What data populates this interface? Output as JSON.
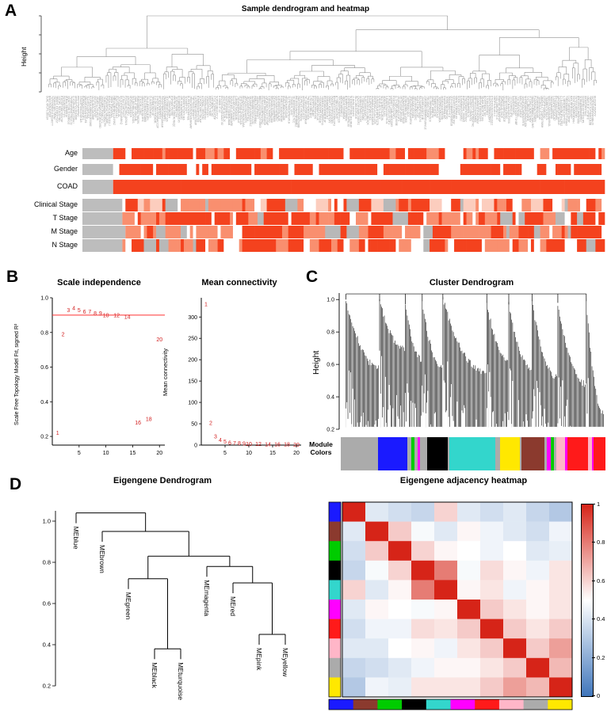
{
  "panel_labels": {
    "A": "A",
    "B": "B",
    "C": "C",
    "D": "D"
  },
  "module_colors": {
    "grey": "#ABABAB",
    "blue": "#1A1AFF",
    "green": "#00CC00",
    "black": "#000000",
    "turquoise": "#33D6CC",
    "magenta": "#FF00FF",
    "red": "#FF1A1A",
    "pink": "#FFB6C8",
    "yellow": "#FFE800",
    "brown": "#8B3A2E"
  },
  "heatmap_palette": {
    "strong_red": "#F4421E",
    "medium_red": "#F98F6F",
    "light_red": "#FCCDBE",
    "white": "#FFFFFF",
    "grey": "#B8B8B8",
    "grey_lead": "#BDBDBD"
  },
  "diverging_scale": {
    "low": "#4076BB",
    "mid": "#FFFFFF",
    "high": "#D62418"
  },
  "chart_data": [
    {
      "type": "dendrogram",
      "panel": "A",
      "title": "Sample dendrogram and heatmap",
      "ylabel": "Height",
      "traits": [
        "Age",
        "Gender",
        "COAD",
        "Clinical Stage",
        "T Stage",
        "M Stage",
        "N Stage"
      ]
    },
    {
      "type": "scatter",
      "panel": "B",
      "title": "Scale independence",
      "ylabel": "Scale Free Topology Model Fit, signed R²",
      "x": [
        1,
        2,
        3,
        4,
        5,
        6,
        7,
        8,
        9,
        10,
        12,
        14,
        16,
        18,
        20
      ],
      "y": [
        0.22,
        0.79,
        0.93,
        0.94,
        0.93,
        0.92,
        0.92,
        0.91,
        0.91,
        0.9,
        0.9,
        0.89,
        0.28,
        0.3,
        0.76
      ],
      "threshold_line": 0.9,
      "xticks": [
        "5",
        "10",
        "15",
        "20"
      ],
      "yticks": [
        "0.2",
        "0.4",
        "0.6",
        "0.8",
        "1.0"
      ],
      "ylim": [
        0.15,
        1.0
      ],
      "xlim": [
        0,
        21
      ]
    },
    {
      "type": "scatter",
      "panel": "B",
      "title": "Mean connectivity",
      "ylabel": "Mean connectivity",
      "x": [
        1,
        2,
        3,
        4,
        5,
        6,
        7,
        8,
        9,
        10,
        12,
        14,
        16,
        18,
        20
      ],
      "y": [
        330,
        52,
        20,
        12,
        8,
        6,
        5,
        4.2,
        3.6,
        3.2,
        2.6,
        2.1,
        1.7,
        1.4,
        1.2
      ],
      "xticks": [
        "5",
        "10",
        "15",
        "20"
      ],
      "yticks": [
        "0",
        "50",
        "100",
        "150",
        "200",
        "250",
        "300"
      ],
      "ylim": [
        0,
        345
      ],
      "xlim": [
        0,
        21
      ]
    },
    {
      "type": "dendrogram",
      "panel": "C",
      "title": "Cluster Dendrogram",
      "ylabel": "Height",
      "yticks": [
        "0.2",
        "0.4",
        "0.6",
        "0.8",
        "1.0"
      ],
      "bar_label_lines": [
        "Module",
        "Colors"
      ],
      "module_segments": [
        [
          "grey",
          13
        ],
        [
          "blue",
          10
        ],
        [
          "grey",
          1.5
        ],
        [
          "green",
          1
        ],
        [
          "grey",
          1
        ],
        [
          "magenta",
          0.8
        ],
        [
          "grey",
          2.7
        ],
        [
          "black",
          7
        ],
        [
          "grey",
          0.5
        ],
        [
          "turquoise",
          16
        ],
        [
          "grey",
          1.5
        ],
        [
          "yellow",
          7
        ],
        [
          "grey",
          0.5
        ],
        [
          "brown",
          8
        ],
        [
          "grey",
          0.7
        ],
        [
          "magenta",
          1.5
        ],
        [
          "green",
          1
        ],
        [
          "grey",
          0.8
        ],
        [
          "pink",
          3
        ],
        [
          "magenta",
          1
        ],
        [
          "red",
          7
        ],
        [
          "pink",
          1.5
        ],
        [
          "magenta",
          0.5
        ],
        [
          "red",
          4
        ]
      ]
    },
    {
      "type": "dendrogram",
      "panel": "D",
      "title": "Eigengene Dendrogram",
      "yticks": [
        "0.2",
        "0.4",
        "0.6",
        "0.8",
        "1.0"
      ],
      "leaves": [
        "MEblue",
        "MEbrown",
        "MEgreen",
        "MEblack",
        "MEturquoise",
        "MEmagenta",
        "MEred",
        "MEpink",
        "MEyellow"
      ],
      "merges": [
        {
          "id": "n1",
          "a": "MEblack",
          "b": "MEturquoise",
          "h": 0.38
        },
        {
          "id": "n2",
          "a": "MEgreen",
          "b": "n1",
          "h": 0.72
        },
        {
          "id": "n3",
          "a": "MEpink",
          "b": "MEyellow",
          "h": 0.45
        },
        {
          "id": "n4",
          "a": "MEred",
          "b": "n3",
          "h": 0.7
        },
        {
          "id": "n5",
          "a": "MEmagenta",
          "b": "n4",
          "h": 0.78
        },
        {
          "id": "n6",
          "a": "n2",
          "b": "n5",
          "h": 0.83
        },
        {
          "id": "n7",
          "a": "MEbrown",
          "b": "n6",
          "h": 0.95
        },
        {
          "id": "n8",
          "a": "MEblue",
          "b": "n7",
          "h": 1.04
        }
      ],
      "hang": 0.05
    },
    {
      "type": "heatmap",
      "panel": "D",
      "title": "Eigengene adjacency heatmap",
      "modules": [
        "blue",
        "brown",
        "green",
        "black",
        "turquoise",
        "magenta",
        "red",
        "pink",
        "grey",
        "yellow"
      ],
      "matrix": [
        [
          1.0,
          0.42,
          0.38,
          0.35,
          0.6,
          0.42,
          0.38,
          0.42,
          0.35,
          0.3
        ],
        [
          0.42,
          1.0,
          0.62,
          0.48,
          0.42,
          0.52,
          0.46,
          0.42,
          0.38,
          0.46
        ],
        [
          0.38,
          0.62,
          1.0,
          0.6,
          0.52,
          0.5,
          0.46,
          0.5,
          0.42,
          0.44
        ],
        [
          0.35,
          0.48,
          0.6,
          1.0,
          0.8,
          0.48,
          0.58,
          0.52,
          0.46,
          0.56
        ],
        [
          0.6,
          0.42,
          0.52,
          0.8,
          1.0,
          0.52,
          0.56,
          0.46,
          0.52,
          0.56
        ],
        [
          0.42,
          0.52,
          0.5,
          0.48,
          0.52,
          1.0,
          0.62,
          0.56,
          0.52,
          0.56
        ],
        [
          0.38,
          0.46,
          0.46,
          0.58,
          0.56,
          0.62,
          1.0,
          0.62,
          0.56,
          0.62
        ],
        [
          0.42,
          0.42,
          0.5,
          0.52,
          0.46,
          0.56,
          0.62,
          1.0,
          0.62,
          0.72
        ],
        [
          0.35,
          0.38,
          0.42,
          0.46,
          0.52,
          0.52,
          0.56,
          0.62,
          1.0,
          0.66
        ],
        [
          0.3,
          0.46,
          0.44,
          0.56,
          0.56,
          0.56,
          0.62,
          0.72,
          0.66,
          1.0
        ]
      ],
      "colorbar_ticks": [
        "1",
        "0.8",
        "0.6",
        "0.4",
        "0.2",
        "0"
      ]
    }
  ]
}
